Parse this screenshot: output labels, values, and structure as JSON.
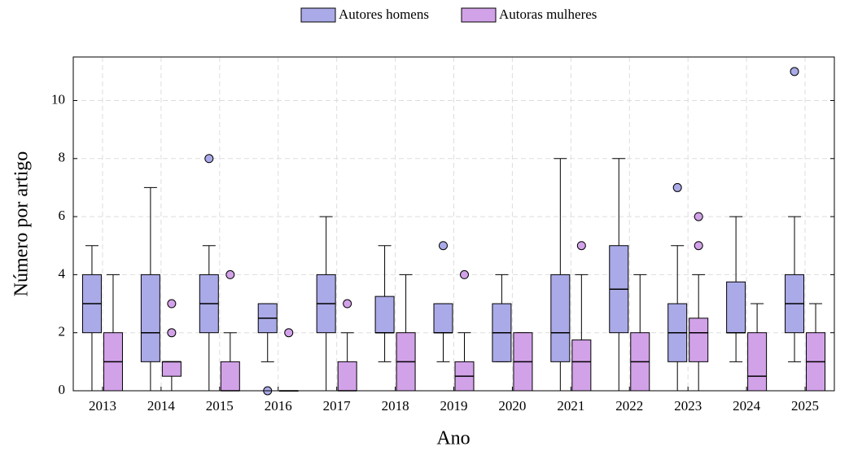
{
  "chart_data": {
    "type": "box",
    "x_label": "Ano",
    "y_label": "Número por artigo",
    "categories": [
      "2013",
      "2014",
      "2015",
      "2016",
      "2017",
      "2018",
      "2019",
      "2020",
      "2021",
      "2022",
      "2023",
      "2024",
      "2025"
    ],
    "ylim": [
      0,
      11.5
    ],
    "yticks": [
      0,
      2,
      4,
      6,
      8,
      10
    ],
    "grid": true,
    "legend": "top",
    "series": [
      {
        "name": "Autores homens",
        "color": "#aaaae8",
        "boxes": [
          {
            "low": 0,
            "q1": 2,
            "median": 3,
            "q3": 4,
            "high": 5,
            "outliers": []
          },
          {
            "low": 0,
            "q1": 1,
            "median": 2,
            "q3": 4,
            "high": 7,
            "outliers": []
          },
          {
            "low": 0,
            "q1": 2,
            "median": 3,
            "q3": 4,
            "high": 5,
            "outliers": [
              8
            ]
          },
          {
            "low": 1,
            "q1": 2,
            "median": 2.5,
            "q3": 3,
            "high": 3,
            "outliers": [
              0
            ]
          },
          {
            "low": 0,
            "q1": 2,
            "median": 3,
            "q3": 4,
            "high": 6,
            "outliers": []
          },
          {
            "low": 1,
            "q1": 2,
            "median": 2,
            "q3": 3.25,
            "high": 5,
            "outliers": []
          },
          {
            "low": 1,
            "q1": 2,
            "median": 2,
            "q3": 3,
            "high": 3,
            "outliers": [
              5
            ]
          },
          {
            "low": 1,
            "q1": 1,
            "median": 2,
            "q3": 3,
            "high": 4,
            "outliers": []
          },
          {
            "low": 0,
            "q1": 1,
            "median": 2,
            "q3": 4,
            "high": 8,
            "outliers": []
          },
          {
            "low": 0,
            "q1": 2,
            "median": 3.5,
            "q3": 5,
            "high": 8,
            "outliers": []
          },
          {
            "low": 0,
            "q1": 1,
            "median": 2,
            "q3": 3,
            "high": 5,
            "outliers": [
              7
            ]
          },
          {
            "low": 1,
            "q1": 2,
            "median": 2,
            "q3": 3.75,
            "high": 6,
            "outliers": []
          },
          {
            "low": 1,
            "q1": 2,
            "median": 3,
            "q3": 4,
            "high": 6,
            "outliers": [
              11
            ]
          }
        ]
      },
      {
        "name": "Autoras mulheres",
        "color": "#d2a2e8",
        "boxes": [
          {
            "low": 0,
            "q1": 0,
            "median": 1,
            "q3": 2,
            "high": 4,
            "outliers": []
          },
          {
            "low": 0,
            "q1": 0.5,
            "median": 1,
            "q3": 1,
            "high": 1,
            "outliers": [
              2,
              3
            ]
          },
          {
            "low": 0,
            "q1": 0,
            "median": 0,
            "q3": 1,
            "high": 2,
            "outliers": [
              4
            ]
          },
          {
            "low": 0,
            "q1": 0,
            "median": 0,
            "q3": 0,
            "high": 0,
            "outliers": [
              2
            ]
          },
          {
            "low": 0,
            "q1": 0,
            "median": 0,
            "q3": 1,
            "high": 2,
            "outliers": [
              3
            ]
          },
          {
            "low": 0,
            "q1": 0,
            "median": 1,
            "q3": 2,
            "high": 4,
            "outliers": []
          },
          {
            "low": 0,
            "q1": 0,
            "median": 0.5,
            "q3": 1,
            "high": 2,
            "outliers": [
              4
            ]
          },
          {
            "low": 0,
            "q1": 0,
            "median": 1,
            "q3": 2,
            "high": 2,
            "outliers": []
          },
          {
            "low": 0,
            "q1": 0,
            "median": 1,
            "q3": 1.75,
            "high": 4,
            "outliers": [
              5
            ]
          },
          {
            "low": 0,
            "q1": 0,
            "median": 1,
            "q3": 2,
            "high": 4,
            "outliers": []
          },
          {
            "low": 0,
            "q1": 1,
            "median": 2,
            "q3": 2.5,
            "high": 4,
            "outliers": [
              5,
              6
            ]
          },
          {
            "low": 0,
            "q1": 0,
            "median": 0.5,
            "q3": 2,
            "high": 3,
            "outliers": []
          },
          {
            "low": 0,
            "q1": 0,
            "median": 1,
            "q3": 2,
            "high": 3,
            "outliers": []
          }
        ]
      }
    ]
  }
}
